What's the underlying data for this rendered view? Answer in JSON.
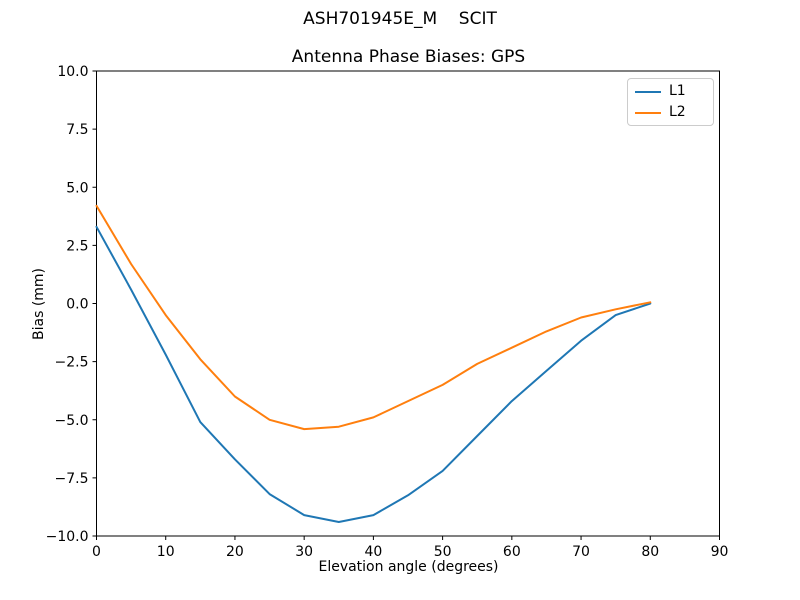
{
  "chart_data": {
    "type": "line",
    "suptitle": "ASH701945E_M    SCIT",
    "title": "Antenna Phase Biases: GPS",
    "xlabel": "Elevation angle (degrees)",
    "ylabel": "Bias (mm)",
    "xlim": [
      0,
      90
    ],
    "ylim": [
      -10,
      10
    ],
    "xticks": [
      0,
      10,
      20,
      30,
      40,
      50,
      60,
      70,
      80,
      90
    ],
    "yticks": [
      -10,
      -7.5,
      -5,
      -2.5,
      0,
      2.5,
      5,
      7.5,
      10
    ],
    "grid": false,
    "background": "#ffffff",
    "spine_color": "#000000",
    "legend": {
      "position": "upper right"
    },
    "x": [
      0,
      5,
      10,
      15,
      20,
      25,
      30,
      35,
      40,
      45,
      50,
      55,
      60,
      65,
      70,
      75,
      80
    ],
    "series": [
      {
        "name": "L1",
        "color": "#1f77b4",
        "values": [
          3.3,
          0.6,
          -2.2,
          -5.1,
          -6.7,
          -8.2,
          -9.1,
          -9.4,
          -9.1,
          -8.25,
          -7.2,
          -5.7,
          -4.2,
          -2.9,
          -1.6,
          -0.5,
          0.0
        ]
      },
      {
        "name": "L2",
        "color": "#ff7f0e",
        "values": [
          4.2,
          1.7,
          -0.5,
          -2.4,
          -4.0,
          -5.0,
          -5.4,
          -5.3,
          -4.9,
          -4.2,
          -3.5,
          -2.6,
          -1.9,
          -1.2,
          -0.6,
          -0.25,
          0.05
        ]
      }
    ]
  }
}
